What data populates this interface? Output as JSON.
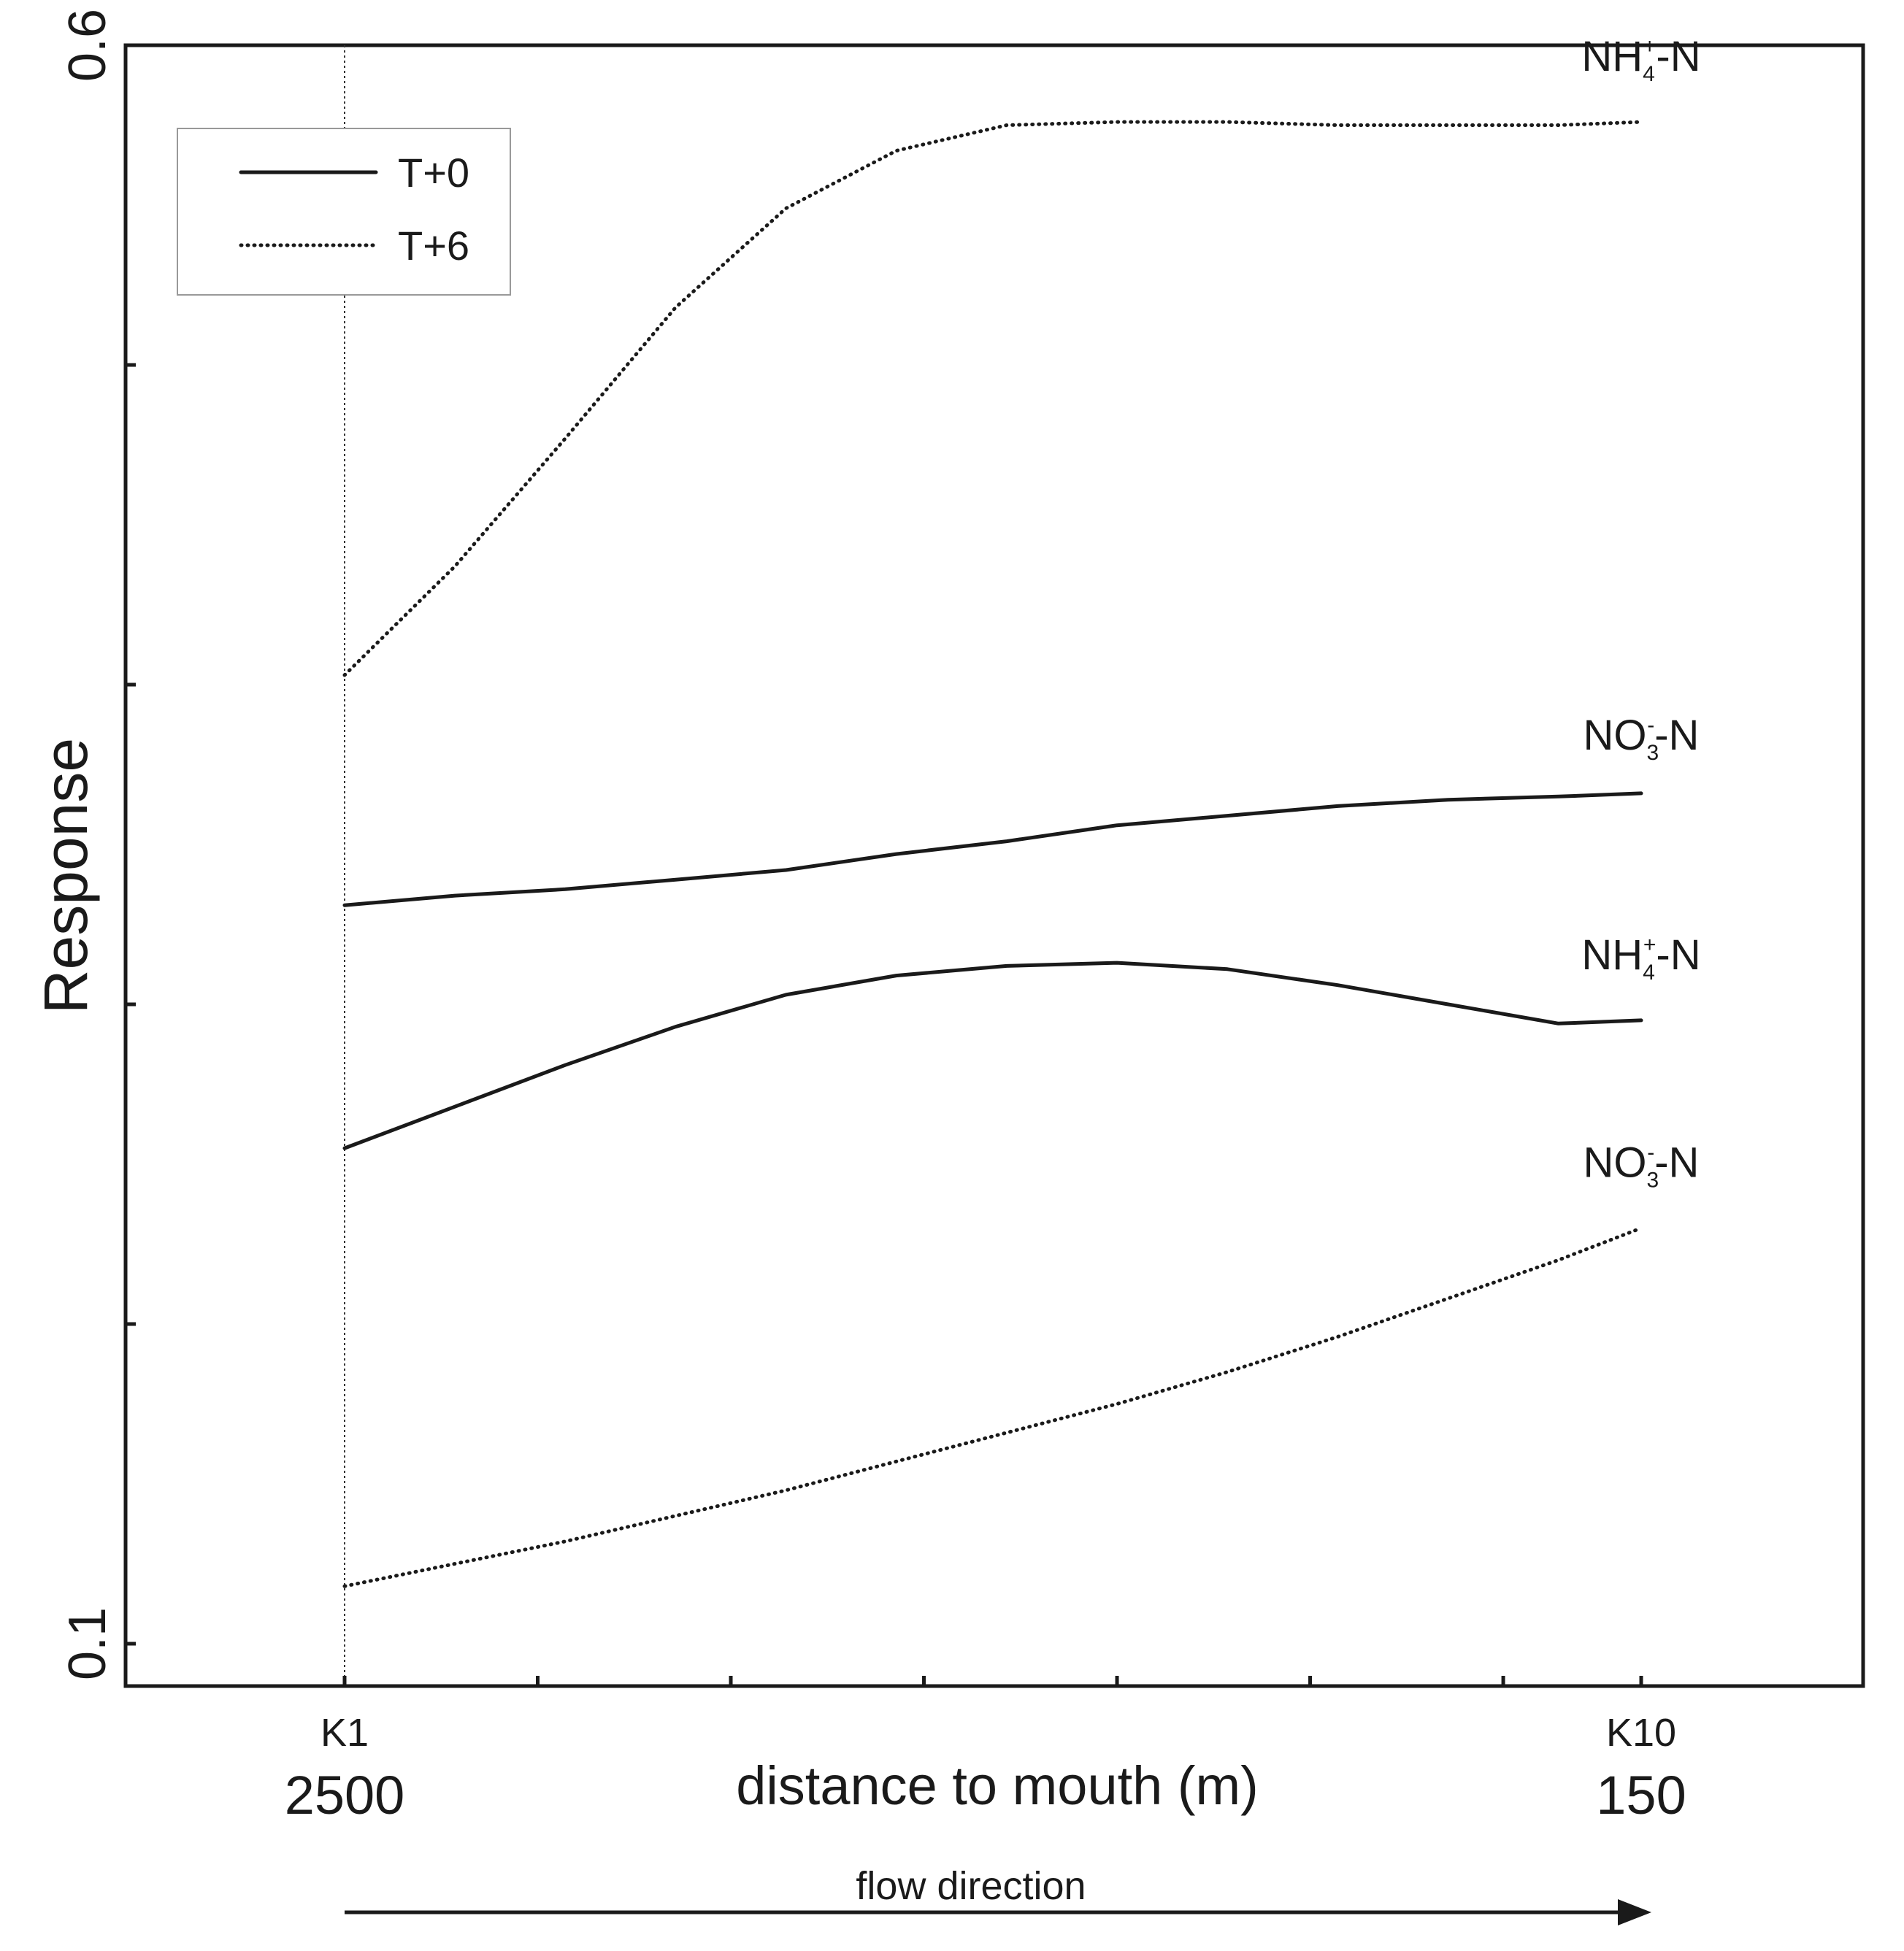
{
  "chart_data": {
    "type": "line",
    "xlabel": "distance to mouth (m)",
    "ylabel": "Response",
    "xlim": [
      2500,
      150
    ],
    "ylim": [
      0.1,
      0.6
    ],
    "y_ticks": [
      0.1,
      0.2,
      0.3,
      0.4,
      0.5,
      0.6
    ],
    "y_tick_labels": [
      "0.1",
      "",
      "",
      "",
      "",
      "0.6"
    ],
    "x_ticks": [
      2500,
      2150,
      1800,
      1450,
      1100,
      750,
      400,
      150
    ],
    "x_station_labels": [
      {
        "x": 2500,
        "station": "K1",
        "distance": "2500"
      },
      {
        "x": 150,
        "station": "K10",
        "distance": "150"
      }
    ],
    "grid": false,
    "reference_line": {
      "x": 2500,
      "style": "dotted"
    },
    "legend": {
      "position": "top-left",
      "entries": [
        {
          "label": "T+0",
          "style": "solid"
        },
        {
          "label": "T+6",
          "style": "dotted"
        }
      ]
    },
    "flow_label": "flow direction",
    "series": [
      {
        "legend": "T+6",
        "style": "dotted",
        "label": {
          "base": "NH",
          "sub": "4",
          "sup": "+",
          "suffix": "-N"
        },
        "x": [
          2500,
          2300,
          2100,
          1900,
          1700,
          1500,
          1300,
          1100,
          900,
          700,
          500,
          300,
          150
        ],
        "y": [
          0.403,
          0.437,
          0.477,
          0.518,
          0.549,
          0.567,
          0.575,
          0.576,
          0.576,
          0.575,
          0.575,
          0.575,
          0.576
        ]
      },
      {
        "legend": "T+0",
        "style": "solid",
        "label": {
          "base": "NO",
          "sub": "3",
          "sup": "-",
          "suffix": "-N"
        },
        "x": [
          2500,
          2300,
          2100,
          1900,
          1700,
          1500,
          1300,
          1100,
          900,
          700,
          500,
          300,
          150
        ],
        "y": [
          0.331,
          0.334,
          0.336,
          0.339,
          0.342,
          0.347,
          0.351,
          0.356,
          0.359,
          0.362,
          0.364,
          0.365,
          0.366
        ]
      },
      {
        "legend": "T+0",
        "style": "solid",
        "label": {
          "base": "NH",
          "sub": "4",
          "sup": "+",
          "suffix": "-N"
        },
        "x": [
          2500,
          2300,
          2100,
          1900,
          1700,
          1500,
          1300,
          1100,
          900,
          700,
          500,
          300,
          150
        ],
        "y": [
          0.255,
          0.268,
          0.281,
          0.293,
          0.303,
          0.309,
          0.312,
          0.313,
          0.311,
          0.306,
          0.3,
          0.294,
          0.295
        ]
      },
      {
        "legend": "T+6",
        "style": "dotted",
        "label": {
          "base": "NO",
          "sub": "3",
          "sup": "-",
          "suffix": "-N"
        },
        "x": [
          2500,
          2300,
          2100,
          1900,
          1700,
          1500,
          1300,
          1100,
          900,
          700,
          500,
          300,
          150
        ],
        "y": [
          0.118,
          0.125,
          0.132,
          0.14,
          0.148,
          0.157,
          0.166,
          0.175,
          0.185,
          0.196,
          0.208,
          0.22,
          0.23
        ]
      }
    ]
  }
}
